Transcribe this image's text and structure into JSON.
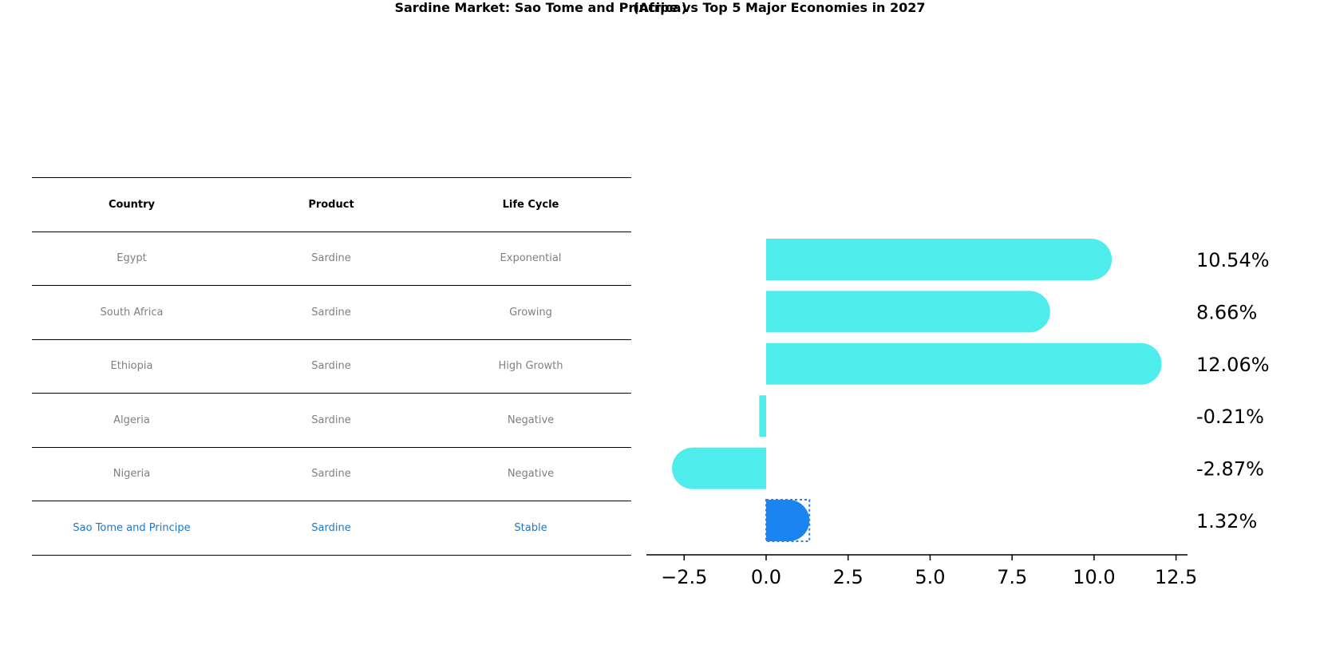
{
  "title": "Sardine Market: Sao Tome and Principe vs Top 5 Major Economies in 2027",
  "subtitle": "(Africa)",
  "table": {
    "headers": [
      "Country",
      "Product",
      "Life Cycle"
    ],
    "rows": [
      [
        "Egypt",
        "Sardine",
        "Exponential"
      ],
      [
        "South Africa",
        "Sardine",
        "Growing"
      ],
      [
        "Ethiopia",
        "Sardine",
        "High Growth"
      ],
      [
        "Algeria",
        "Sardine",
        "Negative"
      ],
      [
        "Nigeria",
        "Sardine",
        "Negative"
      ],
      [
        "Sao Tome and Principe",
        "Sardine",
        "Stable"
      ]
    ]
  },
  "colors": {
    "bar": "#4eecea",
    "highlight": "#1a84f0",
    "highlight_text": "#1f77c4"
  },
  "chart_data": {
    "type": "bar",
    "orientation": "horizontal",
    "categories": [
      "Egypt",
      "South Africa",
      "Ethiopia",
      "Algeria",
      "Nigeria",
      "Sao Tome and Principe"
    ],
    "values": [
      10.54,
      8.66,
      12.06,
      -0.21,
      -2.87,
      1.32
    ],
    "labels": [
      "10.54%",
      "8.66%",
      "12.06%",
      "-0.21%",
      "-2.87%",
      "1.32%"
    ],
    "highlight_index": 5,
    "xlim": [
      -3.65,
      12.85
    ],
    "xticks": [
      -2.5,
      0.0,
      2.5,
      5.0,
      7.5,
      10.0,
      12.5
    ],
    "xtick_labels": [
      "−2.5",
      "0.0",
      "2.5",
      "5.0",
      "7.5",
      "10.0",
      "12.5"
    ]
  }
}
